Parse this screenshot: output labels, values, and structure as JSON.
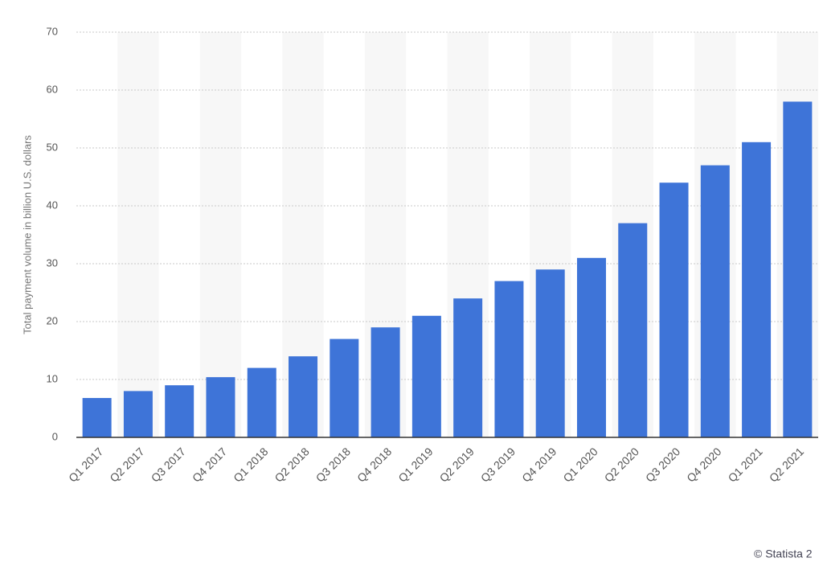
{
  "chart_data": {
    "type": "bar",
    "y_label": "Total payment volume in billion U.S. dollars",
    "source": "© Statista 2",
    "categories": [
      "Q1 2017",
      "Q2 2017",
      "Q3 2017",
      "Q4 2017",
      "Q1 2018",
      "Q2 2018",
      "Q3 2018",
      "Q4 2018",
      "Q1 2019",
      "Q2 2019",
      "Q3 2019",
      "Q4 2019",
      "Q1 2020",
      "Q2 2020",
      "Q3 2020",
      "Q4 2020",
      "Q1 2021",
      "Q2 2021"
    ],
    "values": [
      6.8,
      8.0,
      9.0,
      10.4,
      12,
      14,
      17,
      19,
      21,
      24,
      27,
      29,
      31,
      37,
      44,
      47,
      51,
      58
    ],
    "color": "#3e74d8",
    "ylim": [
      0,
      70
    ],
    "yticks": [
      0,
      10,
      20,
      30,
      40,
      50,
      60,
      70
    ],
    "grid": true
  }
}
